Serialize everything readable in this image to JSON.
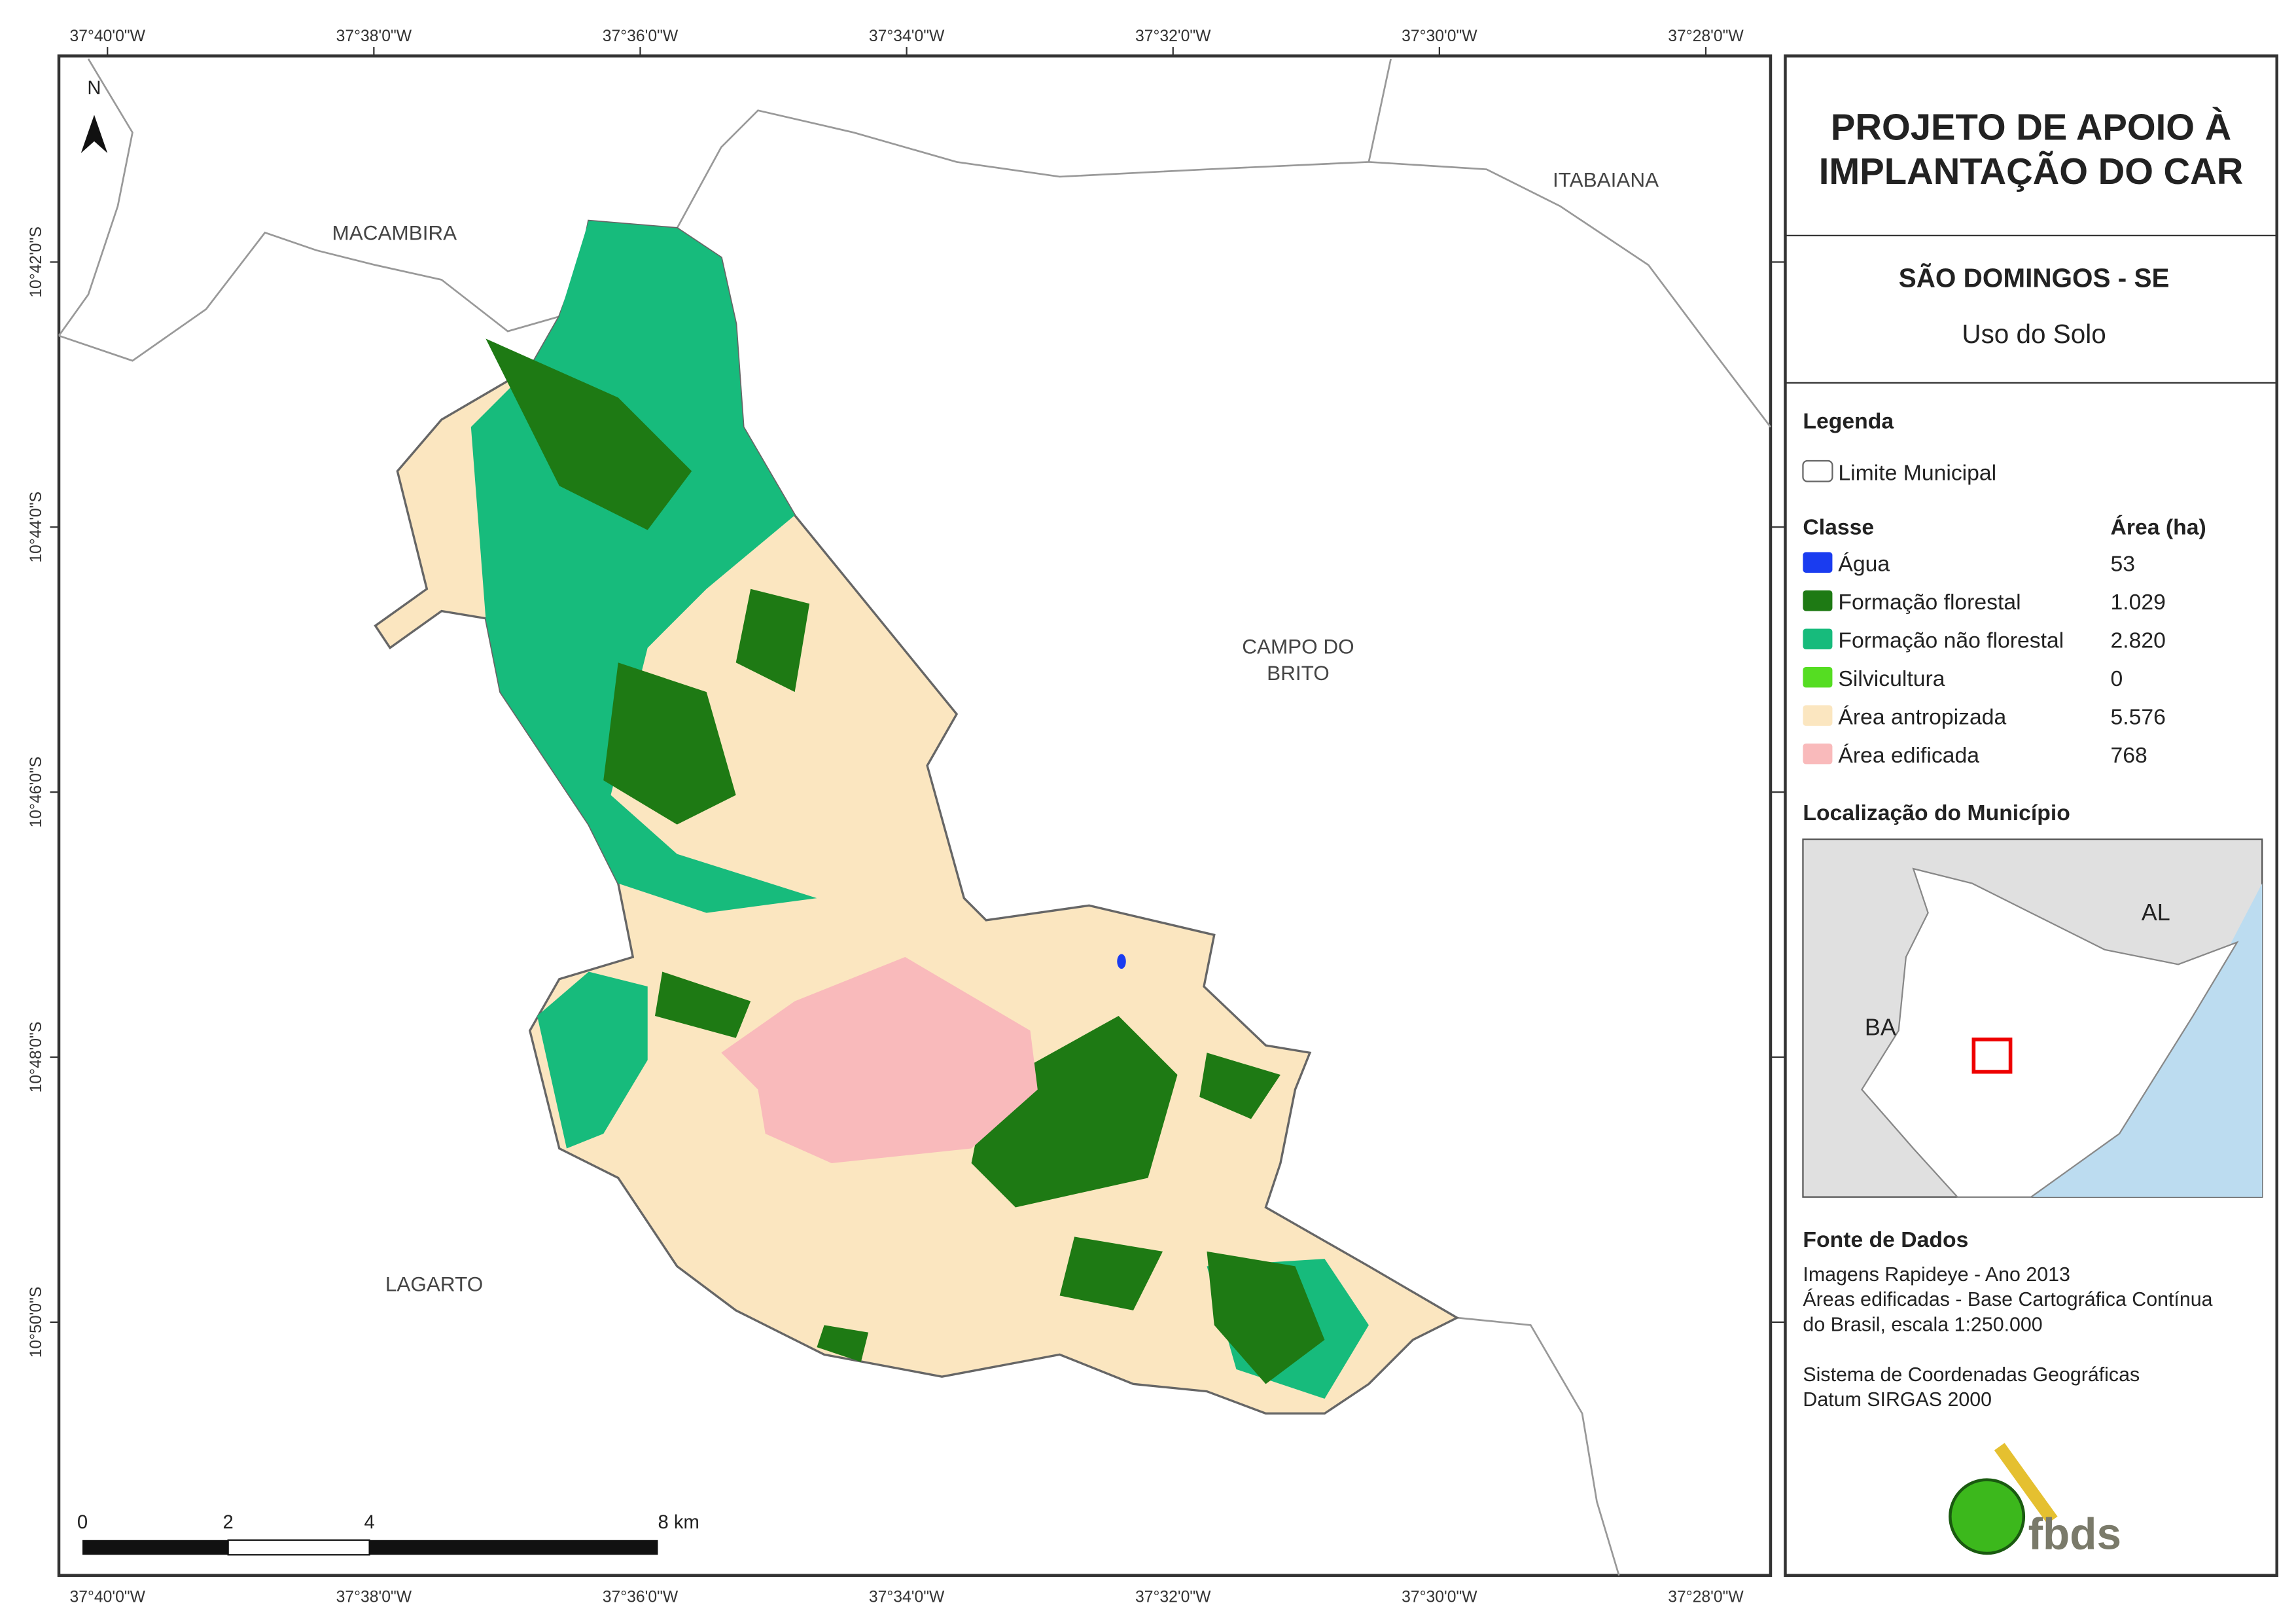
{
  "map": {
    "top_coords": [
      "37°40'0\"W",
      "37°38'0\"W",
      "37°36'0\"W",
      "37°34'0\"W",
      "37°32'0\"W",
      "37°30'0\"W",
      "37°28'0\"W"
    ],
    "left_coords": [
      "10°42'0\"S",
      "10°44'0\"S",
      "10°46'0\"S",
      "10°48'0\"S",
      "10°50'0\"S"
    ],
    "north": "N",
    "municipalities": [
      "MACAMBIRA",
      "ITABAIANA",
      "CAMPO DO",
      "BRITO",
      "LAGARTO"
    ],
    "scale": [
      "0",
      "2",
      "4",
      "8 km"
    ]
  },
  "header": {
    "title_line1": "PROJETO DE APOIO À",
    "title_line2": "IMPLANTAÇÃO DO CAR",
    "place": "SÃO DOMINGOS - SE",
    "theme": "Uso do Solo"
  },
  "legend": {
    "heading": "Legenda",
    "limit": "Limite Municipal",
    "class_header": "Classe",
    "area_header": "Área (ha)",
    "items": [
      {
        "name": "Água",
        "area": "53",
        "color": "#1a3cf0"
      },
      {
        "name": "Formação florestal",
        "area": "1.029",
        "color": "#1e7a14"
      },
      {
        "name": "Formação não florestal",
        "area": "2.820",
        "color": "#17bb7c"
      },
      {
        "name": "Silvicultura",
        "area": "0",
        "color": "#55dd22"
      },
      {
        "name": "Área antropizada",
        "area": "5.576",
        "color": "#fbe6c0"
      },
      {
        "name": "Área edificada",
        "area": "768",
        "color": "#f9babb"
      }
    ]
  },
  "locator": {
    "heading": "Localização do Município",
    "labels": [
      "AL",
      "BA"
    ]
  },
  "sources": {
    "heading": "Fonte de Dados",
    "lines": [
      "Imagens Rapideye - Ano 2013",
      "Áreas edificadas - Base Cartográfica Contínua",
      "do Brasil, escala 1:250.000",
      "Sistema de Coordenadas Geográficas",
      "Datum SIRGAS 2000"
    ]
  },
  "logo": "fbds"
}
